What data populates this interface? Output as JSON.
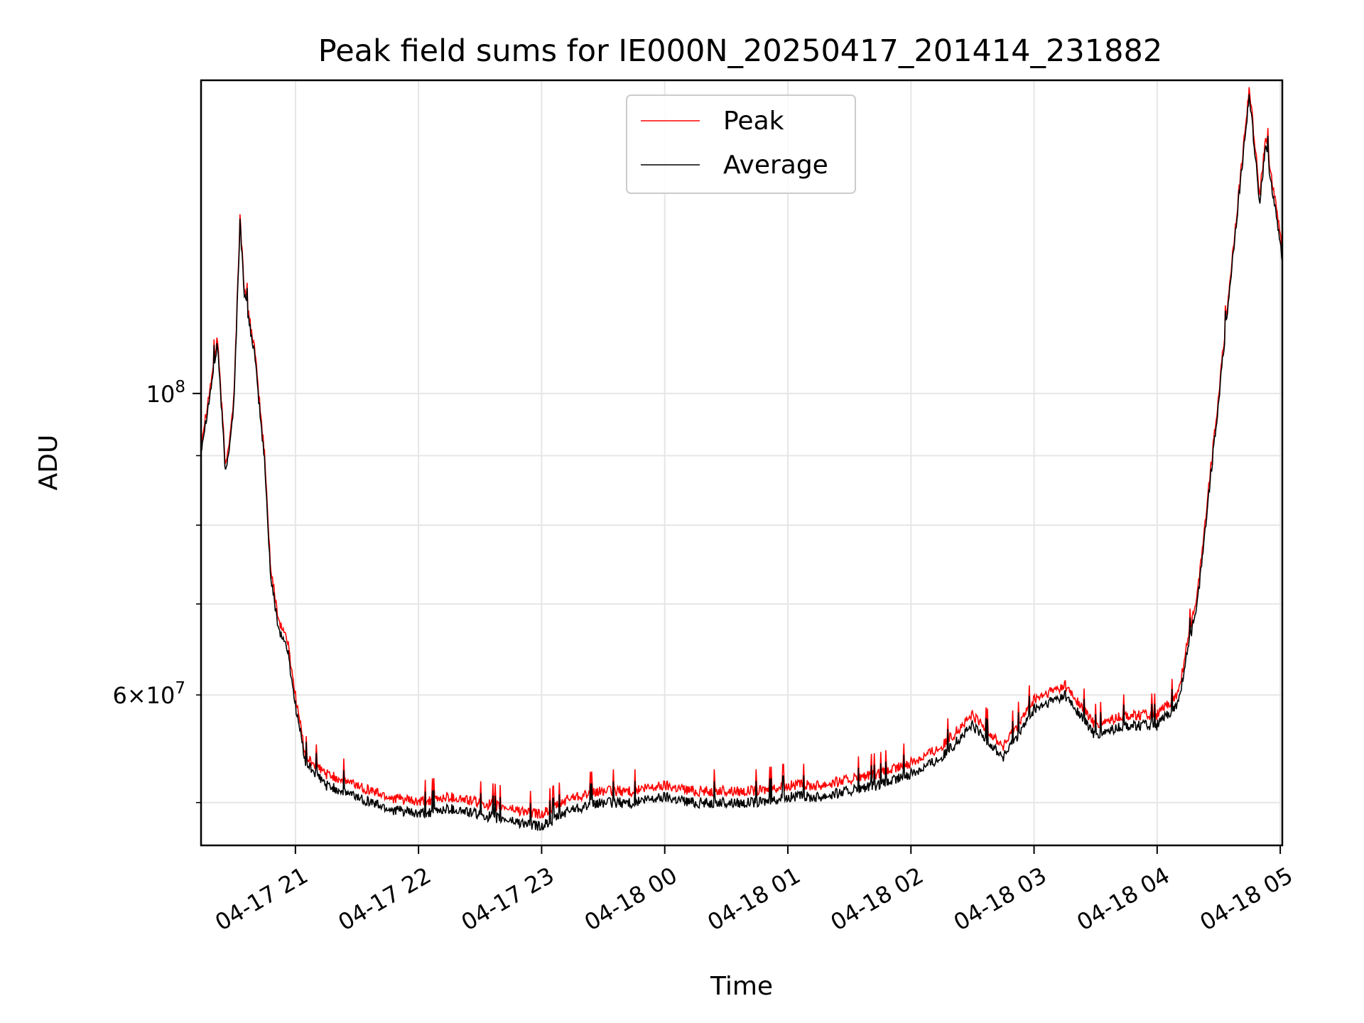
{
  "chart_data": {
    "type": "line",
    "title": "Peak field sums for IE000N_20250417_201414_231882",
    "xlabel": "Time",
    "ylabel": "ADU",
    "yscale": "log",
    "xlim": [
      "2025-04-17 20:14",
      "2025-04-18 05:01"
    ],
    "ylim": [
      46500000,
      170000000
    ],
    "grid": true,
    "legend": "upper-center",
    "x_ticks": [
      "04-17 21",
      "04-17 22",
      "04-17 23",
      "04-18 00",
      "04-18 01",
      "04-18 02",
      "04-18 03",
      "04-18 04",
      "04-18 05"
    ],
    "y_ticks_major": [
      {
        "value": 100000000,
        "base": "10",
        "exp": "8",
        "mant": ""
      }
    ],
    "y_ticks_minor_labeled": [
      {
        "value": 60000000,
        "mant": "6",
        "base": "10",
        "exp": "7"
      }
    ],
    "x": [
      "2025-04-17 20:14",
      "2025-04-17 20:18",
      "2025-04-17 20:22",
      "2025-04-17 20:26",
      "2025-04-17 20:30",
      "2025-04-17 20:33",
      "2025-04-17 20:35",
      "2025-04-17 20:40",
      "2025-04-17 20:45",
      "2025-04-17 20:48",
      "2025-04-17 20:52",
      "2025-04-17 20:56",
      "2025-04-17 21:00",
      "2025-04-17 21:05",
      "2025-04-17 21:15",
      "2025-04-17 21:30",
      "2025-04-17 21:45",
      "2025-04-17 22:00",
      "2025-04-17 22:15",
      "2025-04-17 22:30",
      "2025-04-17 22:45",
      "2025-04-17 23:00",
      "2025-04-17 23:15",
      "2025-04-17 23:30",
      "2025-04-17 23:45",
      "2025-04-18 00:00",
      "2025-04-18 00:15",
      "2025-04-18 00:30",
      "2025-04-18 00:45",
      "2025-04-18 01:00",
      "2025-04-18 01:15",
      "2025-04-18 01:30",
      "2025-04-18 01:45",
      "2025-04-18 02:00",
      "2025-04-18 02:15",
      "2025-04-18 02:30",
      "2025-04-18 02:45",
      "2025-04-18 03:00",
      "2025-04-18 03:15",
      "2025-04-18 03:30",
      "2025-04-18 03:45",
      "2025-04-18 04:00",
      "2025-04-18 04:10",
      "2025-04-18 04:20",
      "2025-04-18 04:30",
      "2025-04-18 04:38",
      "2025-04-18 04:45",
      "2025-04-18 04:50",
      "2025-04-18 04:53",
      "2025-04-18 04:57",
      "2025-04-18 05:01"
    ],
    "series": [
      {
        "name": "Peak",
        "color": "#ff0000",
        "values": [
          92000000,
          100000000,
          110000000,
          88000000,
          99000000,
          135000000,
          120000000,
          108000000,
          90000000,
          74000000,
          68000000,
          66000000,
          60000000,
          54000000,
          52500000,
          51500000,
          50500000,
          50000000,
          50500000,
          50000000,
          49500000,
          49000000,
          50500000,
          51000000,
          51000000,
          51500000,
          51000000,
          51000000,
          51000000,
          51500000,
          51500000,
          52000000,
          52500000,
          53500000,
          55000000,
          58000000,
          55000000,
          59500000,
          61000000,
          57000000,
          58000000,
          58000000,
          60000000,
          72000000,
          100000000,
          132000000,
          168000000,
          140000000,
          155000000,
          140000000,
          128000000
        ]
      },
      {
        "name": "Average",
        "color": "#000000",
        "values": [
          91000000,
          99000000,
          109000000,
          87000000,
          98000000,
          134000000,
          119000000,
          107000000,
          89000000,
          73000000,
          67000000,
          65000000,
          59000000,
          53500000,
          51500000,
          50500000,
          49500000,
          49000000,
          49500000,
          49000000,
          48500000,
          48000000,
          49500000,
          50000000,
          50000000,
          50500000,
          50000000,
          50000000,
          50000000,
          50500000,
          50500000,
          51000000,
          51500000,
          52500000,
          54000000,
          57000000,
          54000000,
          58500000,
          60000000,
          56000000,
          57000000,
          57000000,
          59000000,
          71000000,
          99000000,
          131000000,
          166000000,
          138000000,
          153000000,
          138000000,
          126000000
        ]
      }
    ]
  }
}
